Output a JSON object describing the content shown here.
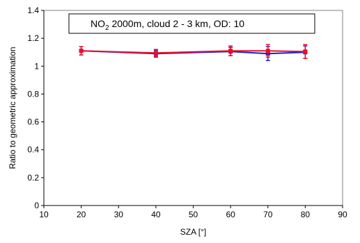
{
  "chart_data": {
    "type": "line",
    "title_main": "NO",
    "title_sub": "2",
    "title_rest": " 2000m, cloud 2 - 3 km, OD: 10",
    "xlabel": "SZA [°]",
    "ylabel": "Ratio to geometric approximation",
    "xlim": [
      10,
      90
    ],
    "ylim": [
      0,
      1.4
    ],
    "xticks": [
      "10",
      "20",
      "30",
      "40",
      "50",
      "60",
      "70",
      "80",
      "90"
    ],
    "yticks": [
      "0",
      "0.2",
      "0.4",
      "0.6",
      "0.8",
      "1",
      "1.2",
      "1.4"
    ],
    "grid": false,
    "series": [
      {
        "color": "#1f1fc8",
        "x": [
          20,
          40,
          60,
          70,
          80
        ],
        "y": [
          1.11,
          1.09,
          1.105,
          1.09,
          1.1
        ],
        "err": [
          0.03,
          0.025,
          0.03,
          0.05,
          0.045
        ]
      },
      {
        "color": "#e8102a",
        "x": [
          20,
          40,
          60,
          70,
          80
        ],
        "y": [
          1.11,
          1.095,
          1.11,
          1.11,
          1.105
        ],
        "err": [
          0.03,
          0.025,
          0.035,
          0.045,
          0.05
        ]
      }
    ]
  }
}
